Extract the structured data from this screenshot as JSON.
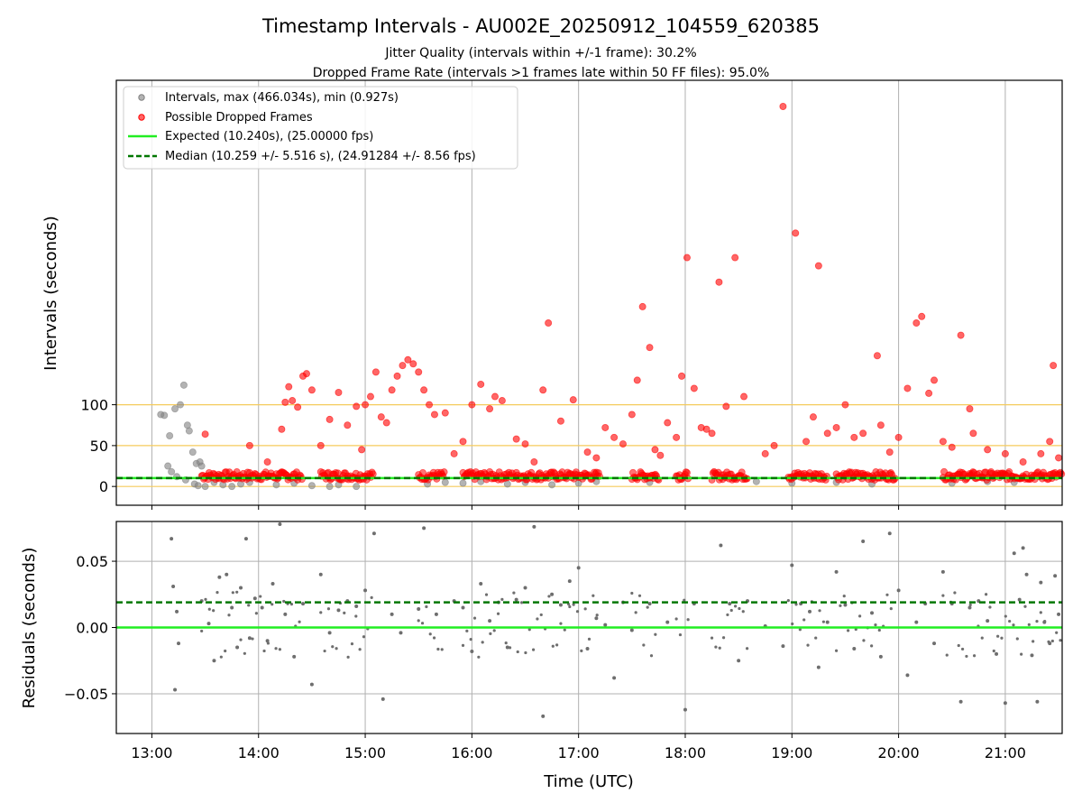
{
  "chart_data": {
    "title": "Timestamp Intervals - AU002E_20250912_104559_620385",
    "subtitle_1": "Jitter Quality (intervals within +/-1 frame): 30.2%",
    "subtitle_2": "Dropped Frame Rate (intervals >1 frames late within 50 FF files): 95.0%",
    "xlabel": "Time (UTC)",
    "x_ticks": [
      "13:00",
      "14:00",
      "15:00",
      "16:00",
      "17:00",
      "18:00",
      "19:00",
      "20:00",
      "21:00"
    ],
    "x_range": [
      "12:40",
      "21:32"
    ],
    "grid": "vertical",
    "legend_placement": "top-left",
    "top": {
      "type": "scatter",
      "ylabel": "Intervals (seconds)",
      "y_ticks": [
        0,
        50,
        100
      ],
      "ylim": [
        -23,
        497
      ],
      "reference_lines": [
        0,
        50,
        100
      ],
      "legend": [
        "Intervals, max (466.034s), min (0.927s)",
        "Possible Dropped Frames",
        "Expected (10.240s), (25.00000 fps)",
        "Median (10.259 +/- 5.516 s), (24.91284 +/- 8.56 fps)"
      ],
      "expected": 10.24,
      "median": 10.259,
      "series": [
        {
          "name": "Intervals, max (466.034s), min (0.927s)",
          "color": "#808080",
          "points": [
            [
              "13:05",
              88
            ],
            [
              "13:07",
              87
            ],
            [
              "13:10",
              62
            ],
            [
              "13:13",
              95
            ],
            [
              "13:16",
              100
            ],
            [
              "13:18",
              124
            ],
            [
              "13:20",
              75
            ],
            [
              "13:21",
              68
            ],
            [
              "13:23",
              42
            ],
            [
              "13:25",
              28
            ],
            [
              "13:27",
              30
            ],
            [
              "13:28",
              25
            ],
            [
              "13:09",
              25
            ],
            [
              "13:11",
              18
            ],
            [
              "13:14",
              12
            ],
            [
              "13:19",
              8
            ],
            [
              "13:24",
              3
            ],
            [
              "13:26",
              1
            ],
            [
              "13:30",
              0
            ],
            [
              "13:35",
              5
            ],
            [
              "13:40",
              2
            ],
            [
              "13:45",
              0
            ],
            [
              "13:50",
              3
            ],
            [
              "13:55",
              5
            ],
            [
              "14:10",
              2
            ],
            [
              "14:20",
              4
            ],
            [
              "14:30",
              1
            ],
            [
              "14:40",
              0
            ],
            [
              "14:45",
              2
            ],
            [
              "14:55",
              0
            ],
            [
              "15:35",
              3
            ],
            [
              "15:45",
              5
            ],
            [
              "15:55",
              4
            ],
            [
              "16:05",
              6
            ],
            [
              "16:20",
              3
            ],
            [
              "16:30",
              5
            ],
            [
              "16:45",
              2
            ],
            [
              "17:00",
              4
            ],
            [
              "17:10",
              6
            ],
            [
              "17:40",
              5
            ],
            [
              "18:40",
              6
            ],
            [
              "19:00",
              4
            ],
            [
              "19:25",
              5
            ],
            [
              "19:45",
              3
            ],
            [
              "20:30",
              4
            ],
            [
              "20:50",
              6
            ],
            [
              "21:05",
              5
            ]
          ]
        },
        {
          "name": "Possible Dropped Frames",
          "color": "#ff0000",
          "points": [
            [
              "13:30",
              64
            ],
            [
              "13:55",
              50
            ],
            [
              "14:05",
              30
            ],
            [
              "14:13",
              70
            ],
            [
              "14:15",
              103
            ],
            [
              "14:17",
              122
            ],
            [
              "14:19",
              105
            ],
            [
              "14:22",
              97
            ],
            [
              "14:25",
              135
            ],
            [
              "14:27",
              138
            ],
            [
              "14:30",
              118
            ],
            [
              "14:35",
              50
            ],
            [
              "14:40",
              82
            ],
            [
              "14:45",
              115
            ],
            [
              "14:50",
              75
            ],
            [
              "14:55",
              98
            ],
            [
              "14:58",
              45
            ],
            [
              "15:00",
              100
            ],
            [
              "15:03",
              110
            ],
            [
              "15:06",
              140
            ],
            [
              "15:09",
              85
            ],
            [
              "15:12",
              78
            ],
            [
              "15:15",
              118
            ],
            [
              "15:18",
              135
            ],
            [
              "15:21",
              148
            ],
            [
              "15:24",
              155
            ],
            [
              "15:27",
              150
            ],
            [
              "15:30",
              140
            ],
            [
              "15:33",
              118
            ],
            [
              "15:36",
              100
            ],
            [
              "15:39",
              88
            ],
            [
              "15:45",
              90
            ],
            [
              "15:50",
              40
            ],
            [
              "15:55",
              55
            ],
            [
              "16:00",
              100
            ],
            [
              "16:05",
              125
            ],
            [
              "16:10",
              95
            ],
            [
              "16:13",
              110
            ],
            [
              "16:17",
              105
            ],
            [
              "16:25",
              58
            ],
            [
              "16:30",
              52
            ],
            [
              "16:35",
              30
            ],
            [
              "16:40",
              118
            ],
            [
              "16:43",
              200
            ],
            [
              "16:50",
              80
            ],
            [
              "16:57",
              106
            ],
            [
              "17:05",
              42
            ],
            [
              "17:10",
              35
            ],
            [
              "17:15",
              72
            ],
            [
              "17:20",
              60
            ],
            [
              "17:25",
              52
            ],
            [
              "17:30",
              88
            ],
            [
              "17:33",
              130
            ],
            [
              "17:36",
              220
            ],
            [
              "17:40",
              170
            ],
            [
              "17:43",
              45
            ],
            [
              "17:46",
              38
            ],
            [
              "17:50",
              78
            ],
            [
              "17:55",
              60
            ],
            [
              "17:58",
              135
            ],
            [
              "18:01",
              280
            ],
            [
              "18:05",
              120
            ],
            [
              "18:09",
              72
            ],
            [
              "18:12",
              70
            ],
            [
              "18:15",
              65
            ],
            [
              "18:19",
              250
            ],
            [
              "18:23",
              98
            ],
            [
              "18:28",
              280
            ],
            [
              "18:33",
              110
            ],
            [
              "18:45",
              40
            ],
            [
              "18:50",
              50
            ],
            [
              "18:55",
              465
            ],
            [
              "19:02",
              310
            ],
            [
              "19:08",
              55
            ],
            [
              "19:12",
              85
            ],
            [
              "19:15",
              270
            ],
            [
              "19:20",
              65
            ],
            [
              "19:25",
              72
            ],
            [
              "19:30",
              100
            ],
            [
              "19:35",
              60
            ],
            [
              "19:40",
              65
            ],
            [
              "19:48",
              160
            ],
            [
              "19:50",
              75
            ],
            [
              "19:55",
              42
            ],
            [
              "20:00",
              60
            ],
            [
              "20:05",
              120
            ],
            [
              "20:10",
              200
            ],
            [
              "20:13",
              208
            ],
            [
              "20:17",
              114
            ],
            [
              "20:20",
              130
            ],
            [
              "20:25",
              55
            ],
            [
              "20:30",
              48
            ],
            [
              "20:35",
              185
            ],
            [
              "20:40",
              95
            ],
            [
              "20:42",
              65
            ],
            [
              "20:50",
              45
            ],
            [
              "21:00",
              40
            ],
            [
              "21:10",
              30
            ],
            [
              "21:20",
              40
            ],
            [
              "21:25",
              55
            ],
            [
              "21:27",
              148
            ],
            [
              "21:30",
              35
            ]
          ]
        }
      ]
    },
    "bottom": {
      "type": "scatter",
      "ylabel": "Residuals (seconds)",
      "y_ticks": [
        "0.05",
        "0.00",
        "−0.05"
      ],
      "ylim": [
        -0.08,
        0.08
      ],
      "expected_residual": 0.0,
      "median_residual": 0.019,
      "series": [
        {
          "name": "Residuals",
          "color": "#6e6e6e",
          "points": [
            [
              "13:11",
              0.067
            ],
            [
              "13:12",
              0.031
            ],
            [
              "13:13",
              -0.047
            ],
            [
              "13:14",
              0.012
            ],
            [
              "13:15",
              -0.012
            ],
            [
              "13:28",
              0.02
            ],
            [
              "13:32",
              0.003
            ],
            [
              "13:35",
              -0.025
            ],
            [
              "13:38",
              0.038
            ],
            [
              "13:42",
              0.04
            ],
            [
              "13:45",
              0.015
            ],
            [
              "13:48",
              -0.015
            ],
            [
              "13:50",
              0.03
            ],
            [
              "13:53",
              0.067
            ],
            [
              "13:55",
              -0.008
            ],
            [
              "13:58",
              0.022
            ],
            [
              "14:02",
              0.015
            ],
            [
              "14:05",
              -0.01
            ],
            [
              "14:08",
              0.033
            ],
            [
              "14:12",
              0.078
            ],
            [
              "14:15",
              0.01
            ],
            [
              "14:20",
              -0.022
            ],
            [
              "14:25",
              0.018
            ],
            [
              "14:30",
              -0.043
            ],
            [
              "14:35",
              0.04
            ],
            [
              "14:40",
              -0.004
            ],
            [
              "14:45",
              0.013
            ],
            [
              "14:50",
              0.02
            ],
            [
              "14:55",
              0.016
            ],
            [
              "15:00",
              0.028
            ],
            [
              "15:05",
              0.071
            ],
            [
              "15:10",
              -0.054
            ],
            [
              "15:15",
              0.01
            ],
            [
              "15:20",
              -0.004
            ],
            [
              "15:30",
              0.014
            ],
            [
              "15:33",
              0.075
            ],
            [
              "15:40",
              0.01
            ],
            [
              "15:50",
              0.02
            ],
            [
              "15:55",
              0.015
            ],
            [
              "16:00",
              -0.018
            ],
            [
              "16:05",
              0.033
            ],
            [
              "16:10",
              0.005
            ],
            [
              "16:15",
              0.019
            ],
            [
              "16:20",
              -0.015
            ],
            [
              "16:25",
              0.021
            ],
            [
              "16:30",
              0.03
            ],
            [
              "16:35",
              0.076
            ],
            [
              "16:40",
              -0.067
            ],
            [
              "16:45",
              0.025
            ],
            [
              "16:50",
              0.017
            ],
            [
              "16:55",
              0.035
            ],
            [
              "17:00",
              0.045
            ],
            [
              "17:05",
              -0.016
            ],
            [
              "17:10",
              0.007
            ],
            [
              "17:15",
              0.002
            ],
            [
              "17:20",
              -0.038
            ],
            [
              "17:25",
              0.019
            ],
            [
              "17:30",
              -0.002
            ],
            [
              "17:40",
              0.018
            ],
            [
              "17:50",
              0.004
            ],
            [
              "18:00",
              -0.062
            ],
            [
              "18:05",
              0.018
            ],
            [
              "18:20",
              0.062
            ],
            [
              "18:25",
              0.018
            ],
            [
              "18:30",
              -0.025
            ],
            [
              "18:35",
              0.02
            ],
            [
              "18:45",
              0.001
            ],
            [
              "18:55",
              -0.014
            ],
            [
              "19:00",
              0.047
            ],
            [
              "19:05",
              0.018
            ],
            [
              "19:10",
              0.012
            ],
            [
              "19:15",
              -0.03
            ],
            [
              "19:20",
              0.004
            ],
            [
              "19:25",
              0.042
            ],
            [
              "19:30",
              0.017
            ],
            [
              "19:35",
              -0.016
            ],
            [
              "19:40",
              0.065
            ],
            [
              "19:45",
              0.011
            ],
            [
              "19:50",
              -0.022
            ],
            [
              "19:55",
              0.071
            ],
            [
              "20:00",
              0.028
            ],
            [
              "20:05",
              -0.036
            ],
            [
              "20:10",
              0.004
            ],
            [
              "20:15",
              0.018
            ],
            [
              "20:20",
              -0.012
            ],
            [
              "20:25",
              0.042
            ],
            [
              "20:30",
              0.018
            ],
            [
              "20:35",
              -0.056
            ],
            [
              "20:40",
              0.015
            ],
            [
              "20:45",
              0.02
            ],
            [
              "20:50",
              0.005
            ],
            [
              "20:55",
              -0.02
            ],
            [
              "21:00",
              -0.057
            ],
            [
              "21:05",
              0.056
            ],
            [
              "21:08",
              0.021
            ],
            [
              "21:10",
              0.06
            ],
            [
              "21:12",
              0.04
            ],
            [
              "21:15",
              -0.021
            ],
            [
              "21:18",
              -0.056
            ],
            [
              "21:20",
              0.034
            ],
            [
              "21:22",
              0.004
            ],
            [
              "21:25",
              -0.012
            ],
            [
              "21:28",
              0.039
            ],
            [
              "21:30",
              0.01
            ]
          ]
        }
      ]
    }
  },
  "colors": {
    "expected_line": "#22ee22",
    "median_line": "#007700",
    "reference_line": "#f5cb5c",
    "grid": "#b0b0b0",
    "intervals": "#808080",
    "dropped": "#ff0000",
    "residuals": "#6e6e6e"
  }
}
